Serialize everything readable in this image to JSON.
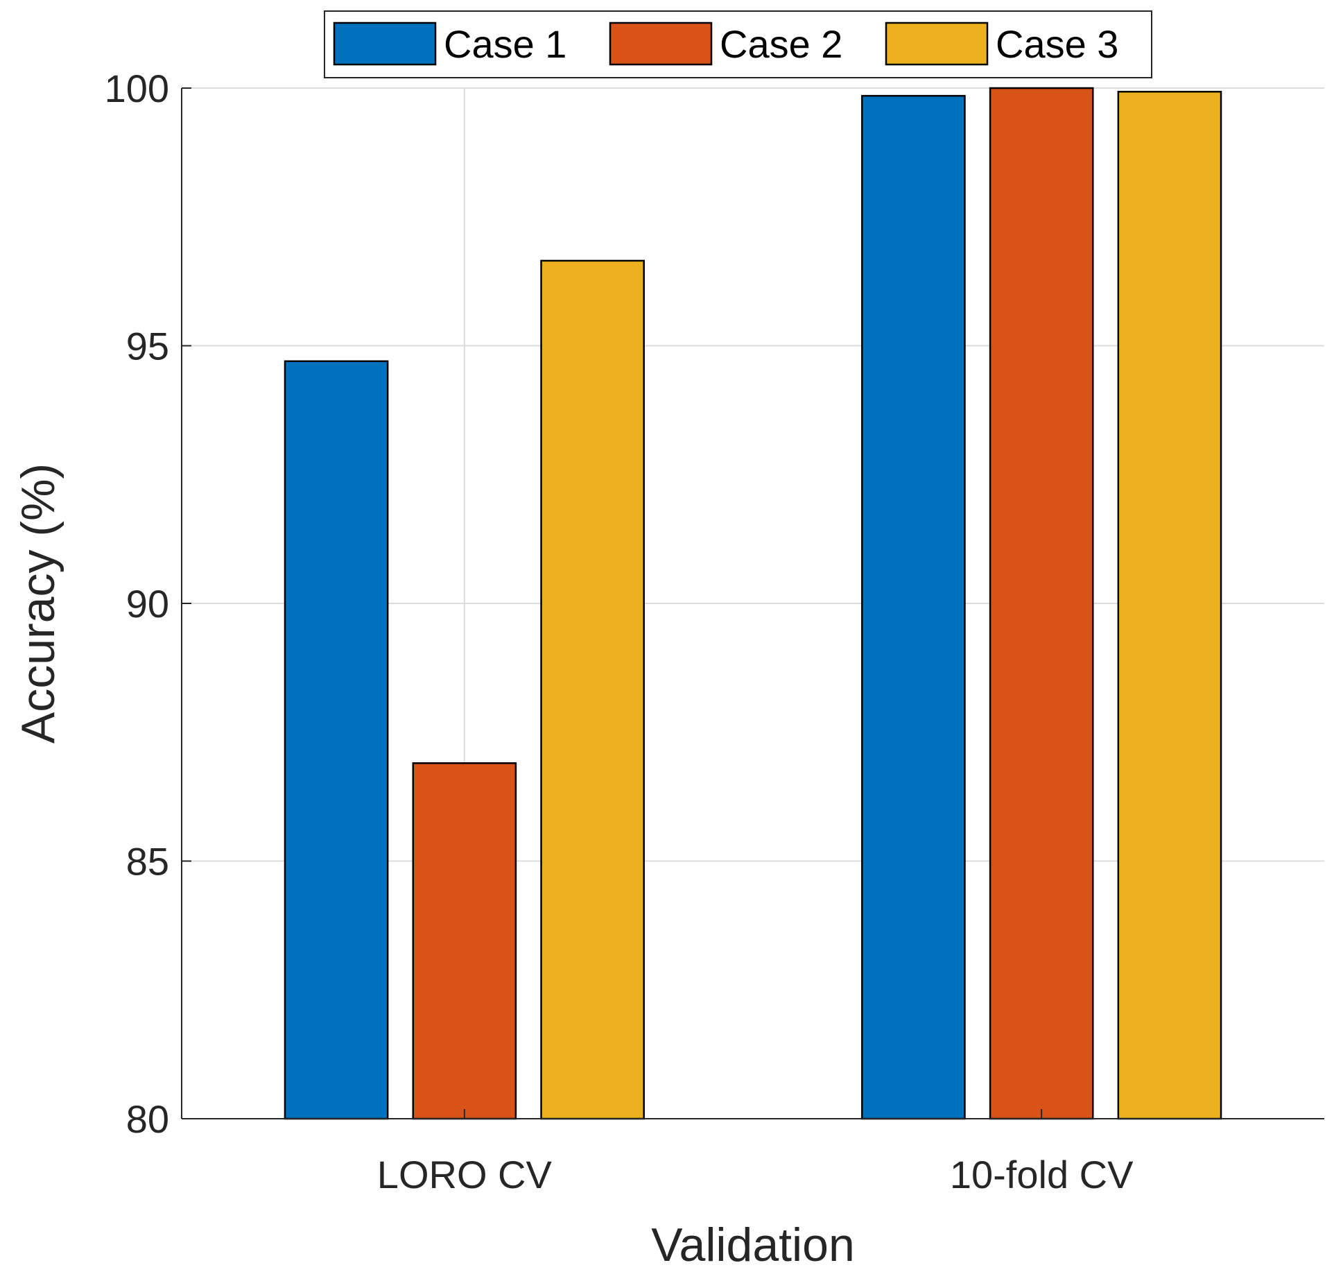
{
  "chart_data": {
    "type": "bar",
    "title": "",
    "xlabel": "Validation",
    "ylabel": "Accuracy (%)",
    "categories": [
      "LORO CV",
      "10-fold CV"
    ],
    "series": [
      {
        "name": "Case 1",
        "color": "#0072BD",
        "values": [
          94.7,
          99.85
        ]
      },
      {
        "name": "Case 2",
        "color": "#D95319",
        "values": [
          86.9,
          100.0
        ]
      },
      {
        "name": "Case 3",
        "color": "#EDB120",
        "values": [
          96.65,
          99.93
        ]
      }
    ],
    "ylim": [
      80,
      100
    ],
    "yticks": [
      "80",
      "85",
      "90",
      "95",
      "100"
    ],
    "grid": true,
    "legend_placement": "top-center, horizontal"
  }
}
